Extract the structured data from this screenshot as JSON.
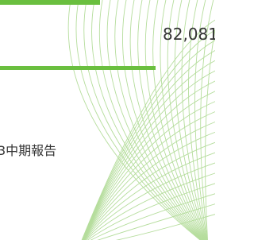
{
  "figure_value": "82,081",
  "report_title": "3中期報告"
}
